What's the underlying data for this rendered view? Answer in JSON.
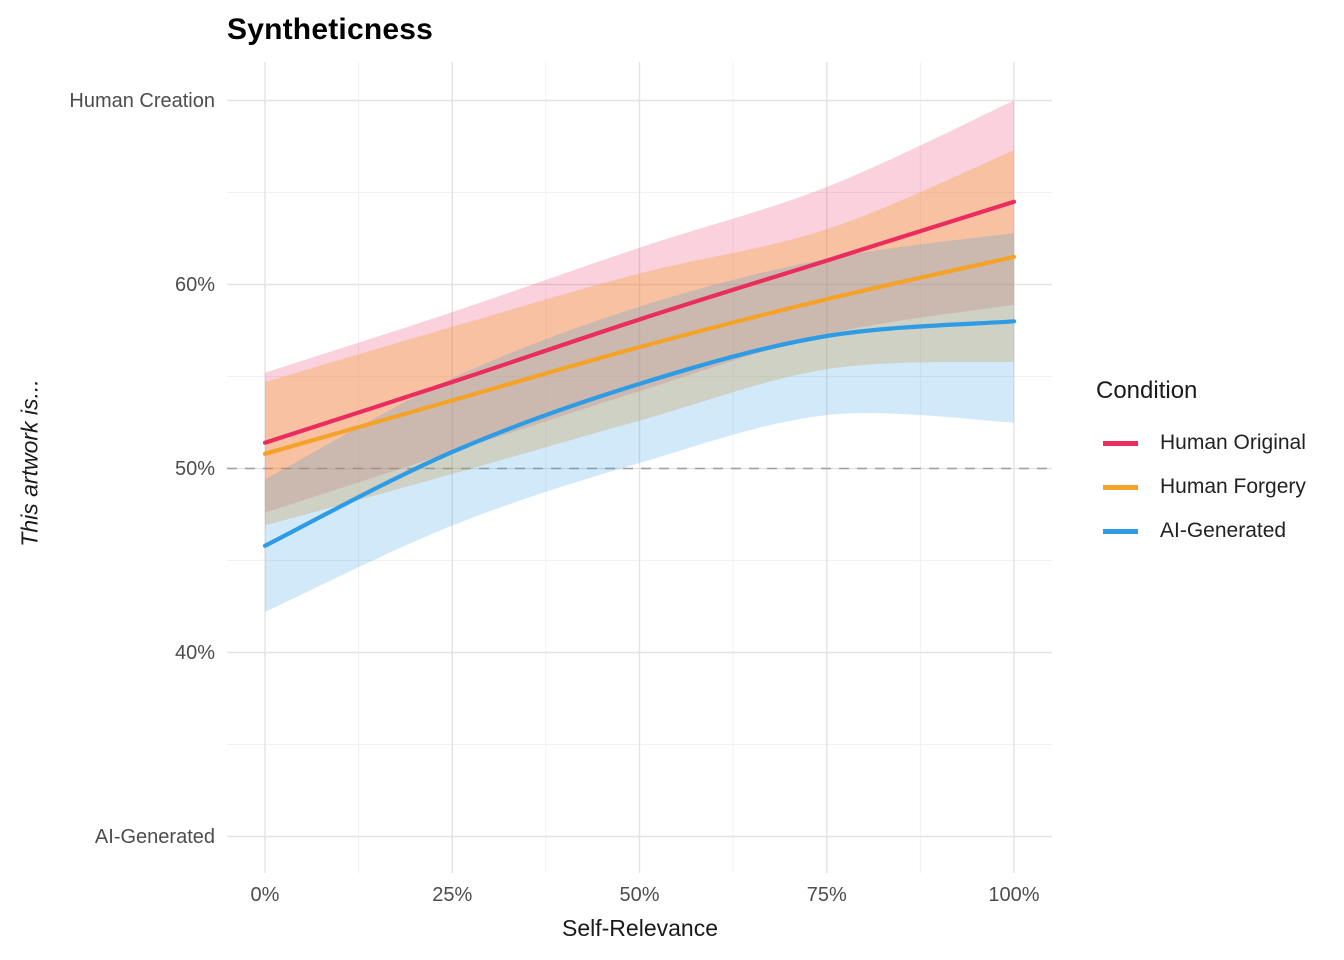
{
  "chart_data": {
    "type": "line",
    "title": "Syntheticness",
    "xlabel": "Self-Relevance",
    "ylabel": "This artwork is...",
    "legend_position": "right",
    "grid": true,
    "background": "#ffffff",
    "grid_major_color": "#e3e3e3",
    "grid_minor_color": "#f0f0f0",
    "x_axis": {
      "range_pct": [
        0,
        100
      ],
      "ticks": [
        {
          "value": 0,
          "label": "0%"
        },
        {
          "value": 25,
          "label": "25%"
        },
        {
          "value": 50,
          "label": "50%"
        },
        {
          "value": 75,
          "label": "75%"
        },
        {
          "value": 100,
          "label": "100%"
        }
      ],
      "minor_breaks": [
        12.5,
        37.5,
        62.5,
        87.5
      ]
    },
    "y_axis": {
      "range_pct": [
        30,
        70
      ],
      "ticks": [
        {
          "value": 70,
          "label": "Human Creation"
        },
        {
          "value": 60,
          "label": "60%"
        },
        {
          "value": 50,
          "label": "50%"
        },
        {
          "value": 40,
          "label": "40%"
        },
        {
          "value": 30,
          "label": "AI-Generated"
        }
      ],
      "minor_breaks": [
        35,
        45,
        55,
        65
      ]
    },
    "reference_line": {
      "y": 50,
      "style": "dashed",
      "color": "#9e9e9e"
    },
    "x": [
      0,
      25,
      50,
      75,
      100
    ],
    "series": [
      {
        "name": "Human Original",
        "color": "#ea2d5e",
        "ribbon_opacity": 0.22,
        "values": [
          51.4,
          54.7,
          58.1,
          61.3,
          64.5
        ],
        "ci_upper": [
          55.2,
          58.5,
          62.0,
          65.3,
          70.0
        ],
        "ci_lower": [
          47.6,
          50.9,
          54.2,
          57.3,
          58.9
        ]
      },
      {
        "name": "Human Forgery",
        "color": "#f5a228",
        "ribbon_opacity": 0.32,
        "values": [
          50.8,
          53.7,
          56.6,
          59.2,
          61.5
        ],
        "ci_upper": [
          54.7,
          57.7,
          60.6,
          63.0,
          67.3
        ],
        "ci_lower": [
          46.9,
          49.7,
          52.6,
          55.4,
          55.8
        ]
      },
      {
        "name": "AI-Generated",
        "color": "#2e9be5",
        "ribbon_opacity": 0.22,
        "values": [
          45.8,
          50.9,
          54.6,
          57.2,
          58.0
        ],
        "ci_upper": [
          49.4,
          54.9,
          58.8,
          61.4,
          62.8
        ],
        "ci_lower": [
          42.2,
          46.9,
          50.3,
          52.9,
          52.5
        ]
      }
    ],
    "legend": {
      "title": "Condition",
      "items": [
        {
          "label": "Human Original"
        },
        {
          "label": "Human Forgery"
        },
        {
          "label": "AI-Generated"
        }
      ]
    }
  }
}
